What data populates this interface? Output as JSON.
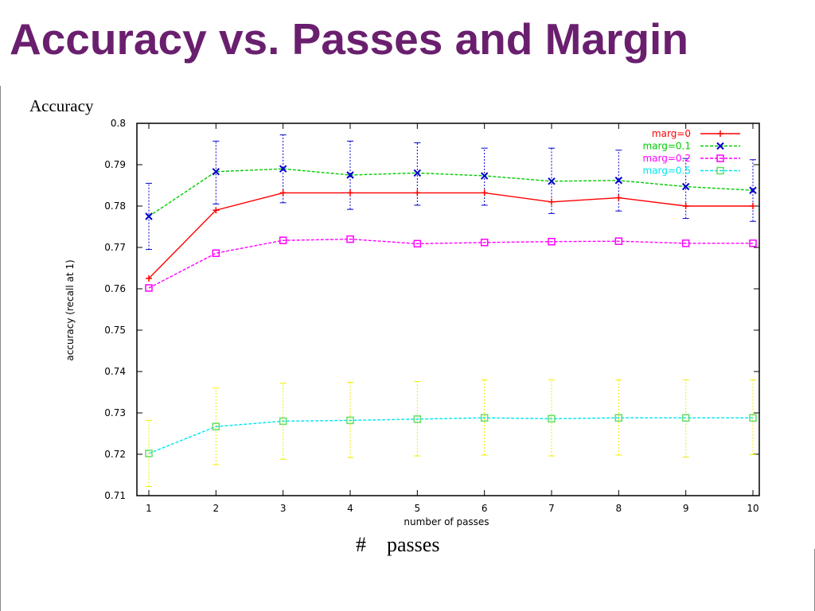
{
  "slide": {
    "title": "Accuracy vs. Passes and Margin",
    "accuracy_label": "Accuracy",
    "passes_caption": "#    passes"
  },
  "chart_data": {
    "type": "line",
    "title": "",
    "xlabel": "number of passes",
    "ylabel": "accuracy (recall at 1)",
    "xlim": [
      1,
      10
    ],
    "ylim": [
      0.71,
      0.8
    ],
    "x_ticks": [
      1,
      2,
      3,
      4,
      5,
      6,
      7,
      8,
      9,
      10
    ],
    "y_ticks": [
      0.71,
      0.72,
      0.73,
      0.74,
      0.75,
      0.76,
      0.77,
      0.78,
      0.79,
      0.8
    ],
    "grid": false,
    "legend_position": "top-right",
    "x": [
      1,
      2,
      3,
      4,
      5,
      6,
      7,
      8,
      9,
      10
    ],
    "series": [
      {
        "name": "marg=0",
        "color": "#ff0000",
        "marker": "plus",
        "values": [
          0.7625,
          0.779,
          0.7832,
          0.7832,
          0.7832,
          0.7832,
          0.781,
          0.782,
          0.78,
          0.78
        ]
      },
      {
        "name": "marg=0.1",
        "color": "#00cc00",
        "marker": "cross",
        "values": [
          0.7775,
          0.7883,
          0.789,
          0.7875,
          0.788,
          0.7873,
          0.786,
          0.7862,
          0.7847,
          0.7838
        ],
        "errorbar_color": "#0000cc",
        "errors": [
          [
            0.7695,
            0.7855
          ],
          [
            0.7805,
            0.7957
          ],
          [
            0.7808,
            0.7972
          ],
          [
            0.7792,
            0.7957
          ],
          [
            0.7802,
            0.7953
          ],
          [
            0.7802,
            0.794
          ],
          [
            0.7782,
            0.794
          ],
          [
            0.7788,
            0.7935
          ],
          [
            0.777,
            0.7915
          ],
          [
            0.7763,
            0.7912
          ]
        ]
      },
      {
        "name": "marg=0.2",
        "color": "#ff00ff",
        "marker": "square",
        "values": [
          0.7602,
          0.7686,
          0.7717,
          0.772,
          0.7709,
          0.7712,
          0.7714,
          0.7715,
          0.771,
          0.771
        ]
      },
      {
        "name": "marg=0.5",
        "color": "#00e5ee",
        "marker": "filled-square",
        "values": [
          0.7202,
          0.7267,
          0.728,
          0.7282,
          0.7285,
          0.7288,
          0.7286,
          0.7288,
          0.7288,
          0.7288
        ],
        "errorbar_color": "#eeee00",
        "errors": [
          [
            0.7122,
            0.7282
          ],
          [
            0.7175,
            0.736
          ],
          [
            0.7188,
            0.7372
          ],
          [
            0.7192,
            0.7374
          ],
          [
            0.7196,
            0.7376
          ],
          [
            0.7198,
            0.738
          ],
          [
            0.7196,
            0.738
          ],
          [
            0.7198,
            0.738
          ],
          [
            0.7193,
            0.738
          ],
          [
            0.7199,
            0.738
          ]
        ]
      }
    ]
  }
}
